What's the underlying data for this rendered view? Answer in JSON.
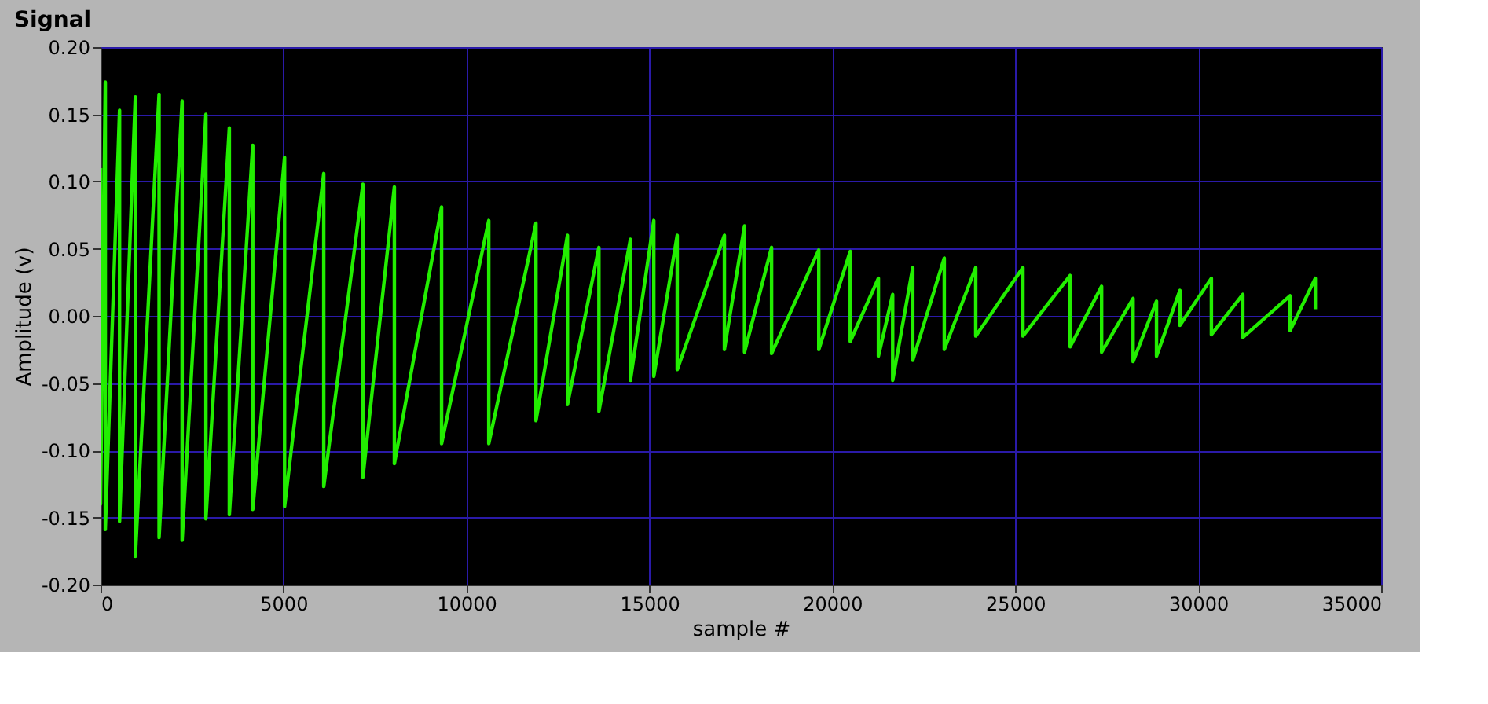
{
  "chart_data": {
    "type": "line",
    "title": "Signal",
    "xlabel": "sample #",
    "ylabel": "Amplitude (v)",
    "x": [
      0,
      0,
      130,
      130,
      520,
      520,
      950,
      950,
      1600,
      1600,
      2230,
      2230,
      2880,
      2880,
      3520,
      3520,
      4160,
      4160,
      5030,
      5030,
      6100,
      6100,
      7170,
      7170,
      8030,
      8030,
      9320,
      9320,
      10610,
      10610,
      11900,
      11900,
      12760,
      12760,
      13620,
      13620,
      14480,
      14480,
      15120,
      15120,
      15760,
      15760,
      17050,
      17050,
      17600,
      17600,
      18340,
      18340,
      19630,
      19630,
      20490,
      20490,
      21260,
      21260,
      21650,
      21650,
      22200,
      22200,
      23060,
      23060,
      23920,
      23920,
      25210,
      25210,
      26500,
      26500,
      27360,
      27360,
      28220,
      28220,
      28860,
      28860,
      29500,
      29500,
      30360,
      30360,
      31220,
      31220,
      32510,
      32510,
      33200,
      33200
    ],
    "series": [
      {
        "color": "#22ee00",
        "values": [
          0.11,
          -0.14,
          0.174,
          -0.159,
          0.153,
          -0.153,
          0.163,
          -0.179,
          0.165,
          -0.165,
          0.16,
          -0.167,
          0.15,
          -0.151,
          0.14,
          -0.148,
          0.127,
          -0.144,
          0.118,
          -0.142,
          0.106,
          -0.127,
          0.098,
          -0.12,
          0.096,
          -0.11,
          0.081,
          -0.095,
          0.071,
          -0.095,
          0.069,
          -0.078,
          0.06,
          -0.066,
          0.051,
          -0.071,
          0.057,
          -0.048,
          0.071,
          -0.045,
          0.06,
          -0.04,
          0.06,
          -0.025,
          0.067,
          -0.027,
          0.051,
          -0.028,
          0.049,
          -0.025,
          0.048,
          -0.019,
          0.028,
          -0.03,
          0.016,
          -0.048,
          0.036,
          -0.033,
          0.043,
          -0.025,
          0.036,
          -0.015,
          0.036,
          -0.015,
          0.03,
          -0.023,
          0.022,
          -0.027,
          0.013,
          -0.034,
          0.011,
          -0.03,
          0.019,
          -0.007,
          0.028,
          -0.014,
          0.016,
          -0.016,
          0.015,
          -0.011,
          0.028,
          0.005
        ]
      }
    ],
    "xlim": [
      0,
      35000
    ],
    "xticks": [
      0,
      5000,
      10000,
      15000,
      20000,
      25000,
      30000,
      35000
    ],
    "ylim": [
      -0.2,
      0.2
    ],
    "yticks": [
      {
        "value": -0.2,
        "label": "-0.20"
      },
      {
        "value": -0.15,
        "label": "-0.15"
      },
      {
        "value": -0.1,
        "label": "-0.10"
      },
      {
        "value": -0.05,
        "label": "-0.05"
      },
      {
        "value": 0,
        "label": "0.00"
      },
      {
        "value": 0.05,
        "label": "0.05"
      },
      {
        "value": 0.1,
        "label": "0.10"
      },
      {
        "value": 0.15,
        "label": "0.15"
      },
      {
        "value": 0.2,
        "label": "0.20"
      }
    ],
    "grid": true,
    "marker": "none",
    "line_style": "solid"
  }
}
